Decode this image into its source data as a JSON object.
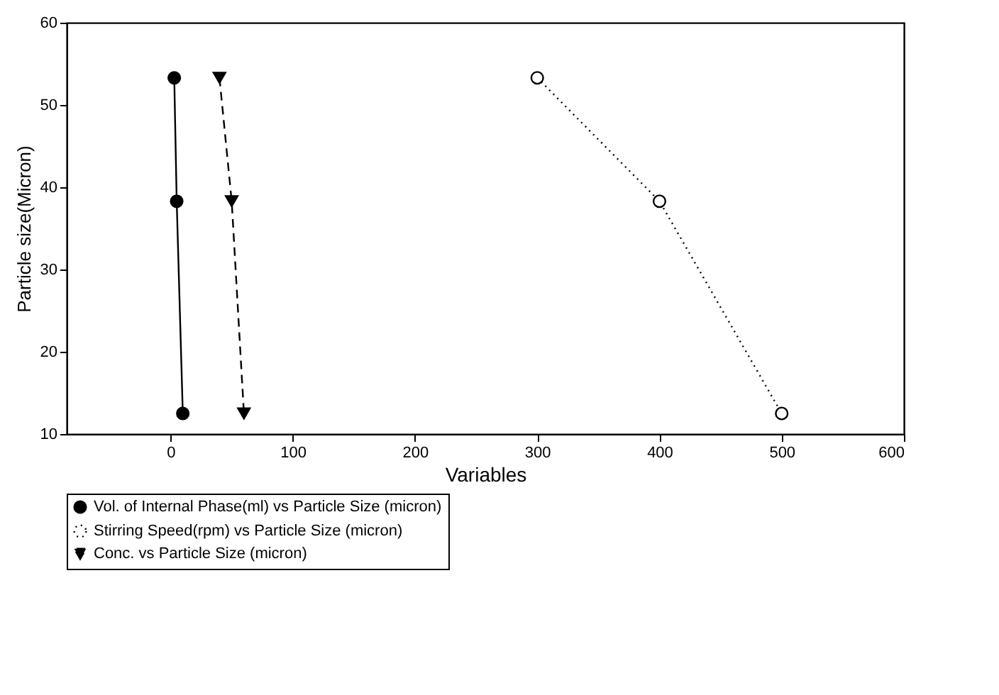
{
  "chart_data": {
    "type": "line",
    "xlabel": "Variables",
    "ylabel": "Particle size(Micron)",
    "xlim": [
      -85,
      600
    ],
    "xticks": [
      0,
      100,
      200,
      300,
      400,
      500,
      600
    ],
    "ylim": [
      10,
      60
    ],
    "yticks": [
      10,
      20,
      30,
      40,
      50,
      60
    ],
    "grid": false,
    "legend": "bottom",
    "series": [
      {
        "name": "Vol. of Internal Phase(ml) vs Particle Size (micron)",
        "color": "#000000",
        "marker": "circle",
        "line_style": "solid",
        "x": [
          3,
          5,
          10
        ],
        "values": [
          53.3,
          38.3,
          12.5
        ]
      },
      {
        "name": "Stirring Speed(rpm) vs Particle Size (micron)",
        "color": "#000000",
        "marker": "circle",
        "line_style": "dotted",
        "x": [
          300,
          400,
          500
        ],
        "values": [
          53.3,
          38.3,
          12.5
        ]
      },
      {
        "name": "Conc. vs Particle Size (micron)",
        "color": "#000000",
        "marker": "triangle",
        "line_style": "dashed",
        "x": [
          40,
          50,
          60
        ],
        "values": [
          53.3,
          38.3,
          12.5
        ]
      }
    ]
  }
}
